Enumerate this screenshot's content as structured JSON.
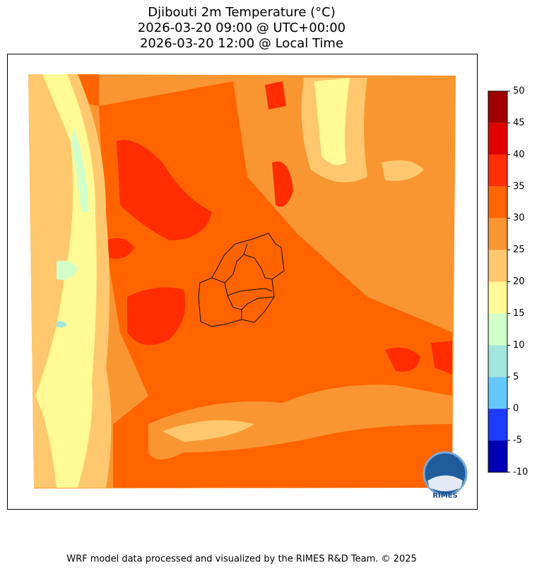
{
  "title": [
    "Djibouti 2m Temperature (°C)",
    "2026-03-20 09:00 @ UTC+00:00",
    "2026-03-20 12:00 @ Local Time"
  ],
  "colorbar": {
    "lim": [
      -10,
      50
    ],
    "ticks": [
      -10,
      -5,
      0,
      5,
      10,
      15,
      20,
      25,
      30,
      35,
      40,
      45,
      50
    ],
    "colors": [
      "#0000b4",
      "#1e3cff",
      "#64c8ff",
      "#a0e6dc",
      "#d2ffc8",
      "#fffa96",
      "#ffc86e",
      "#fa9632",
      "#ff6400",
      "#ff2d00",
      "#e10000",
      "#a00000"
    ]
  },
  "logo_text": "RIMES",
  "footer": "WRF model data processed and visualized by the RIMES R&D Team. © 2025"
}
